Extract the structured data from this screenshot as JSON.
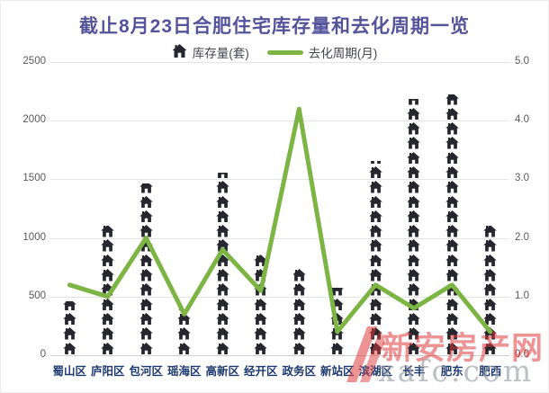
{
  "window": {
    "title": "截止8月23日合肥住宅库存量和去化周期一览"
  },
  "legend": {
    "inventory": "库存量(套)",
    "cycle": "去化周期(月)"
  },
  "chart_data": {
    "type": "bar",
    "subtype": "pictograph-bar + line combo",
    "title": "截止8月23日合肥住宅库存量和去化周期一览",
    "categories": [
      "蜀山区",
      "庐阳区",
      "包河区",
      "瑶海区",
      "高新区",
      "经开区",
      "政务区",
      "新站区",
      "滨湖区",
      "长丰",
      "肥东",
      "肥西"
    ],
    "series": [
      {
        "name": "库存量(套)",
        "type": "pictograph-bar",
        "axis": "left",
        "icon": "house",
        "values": [
          450,
          1100,
          1460,
          400,
          1550,
          890,
          750,
          570,
          1650,
          2180,
          2220,
          1100
        ]
      },
      {
        "name": "去化周期(月)",
        "type": "line",
        "axis": "right",
        "values": [
          1.2,
          1.0,
          2.0,
          0.7,
          1.8,
          1.1,
          4.2,
          0.4,
          1.2,
          0.8,
          1.2,
          0.4
        ]
      }
    ],
    "left_axis": {
      "label": "库存量(套)",
      "min": 0,
      "max": 2500,
      "ticks": [
        "2500",
        "2000",
        "1500",
        "1000",
        "500",
        "0"
      ]
    },
    "right_axis": {
      "label": "去化周期(月)",
      "min": 0,
      "max": 5.0,
      "ticks": [
        "5.0",
        "4.0",
        "3.0",
        "2.0",
        "1.0",
        "0.0"
      ]
    },
    "units_per_icon": 125,
    "grid": true,
    "legend_position": "top-center"
  },
  "watermark": {
    "brand": "新安房产网",
    "domain": "xafc.com"
  },
  "colors": {
    "title": "#55549b",
    "bar_icon": "#26262f",
    "line": "#7cb544",
    "x_labels": "#1d3a70",
    "axis_ticks": "#595959",
    "gridline": "#e4e4e4",
    "watermark_red": "#df3a3c",
    "watermark_gray": "#9499a0"
  }
}
